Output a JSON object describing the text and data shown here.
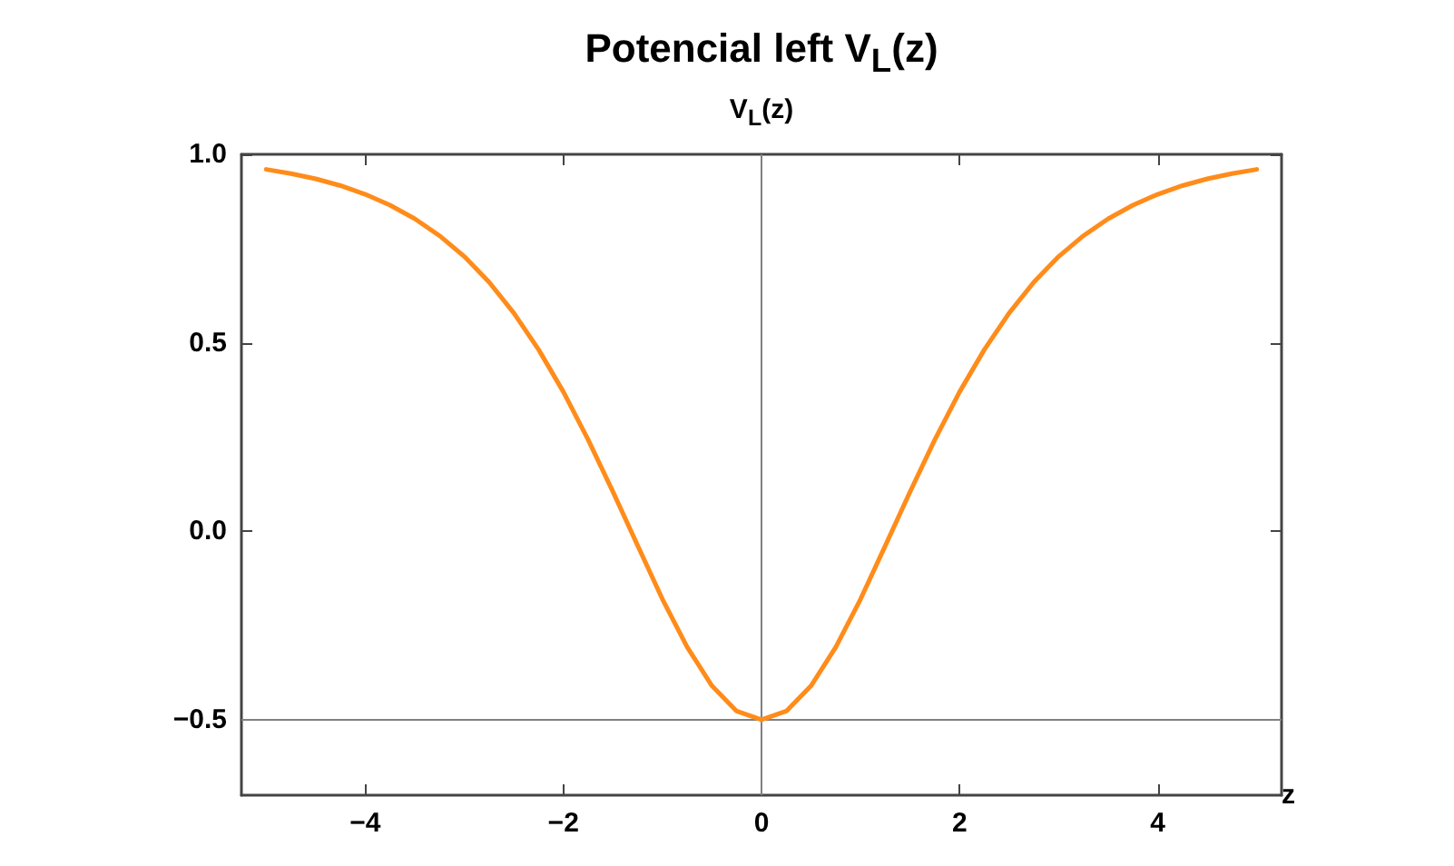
{
  "chart_data": {
    "type": "line",
    "title": "Potencial left V$_{L}$(z)",
    "ylabel": "V$_{L}$(z)",
    "xlabel": "z",
    "x": [
      -5,
      -4.75,
      -4.5,
      -4.25,
      -4,
      -3.75,
      -3.5,
      -3.25,
      -3,
      -2.75,
      -2.5,
      -2.25,
      -2,
      -1.75,
      -1.5,
      -1.25,
      -1,
      -0.75,
      -0.5,
      -0.25,
      0,
      0.25,
      0.5,
      0.75,
      1,
      1.25,
      1.5,
      1.75,
      2,
      2.25,
      2.5,
      2.75,
      3,
      3.25,
      3.5,
      3.75,
      4,
      4.25,
      4.5,
      4.75,
      5
    ],
    "series": [
      {
        "color": "#ff8c1a",
        "values": [
          0.96,
          0.949,
          0.935,
          0.917,
          0.894,
          0.865,
          0.829,
          0.784,
          0.729,
          0.661,
          0.579,
          0.482,
          0.37,
          0.243,
          0.105,
          -0.038,
          -0.18,
          -0.307,
          -0.41,
          -0.477,
          -0.5,
          -0.477,
          -0.41,
          -0.307,
          -0.18,
          -0.038,
          0.105,
          0.243,
          0.37,
          0.482,
          0.579,
          0.661,
          0.729,
          0.784,
          0.829,
          0.865,
          0.894,
          0.917,
          0.935,
          0.949,
          0.96
        ]
      }
    ],
    "xlim": [
      -5.25,
      5.25
    ],
    "ylim": [
      -0.7,
      1.0
    ],
    "xticks": [
      {
        "value": -4,
        "label": "−4"
      },
      {
        "value": -2,
        "label": "−2"
      },
      0,
      2,
      4
    ],
    "yticks": [
      {
        "value": -0.5,
        "label": "−0.5"
      },
      {
        "value": 0,
        "label": "0.0"
      },
      {
        "value": 0.5,
        "label": "0.5"
      },
      {
        "value": 1,
        "label": "1.0"
      }
    ],
    "ref_lines": [
      {
        "axis": "x",
        "value": 0,
        "color": "#808080"
      },
      {
        "axis": "y",
        "value": -0.5,
        "color": "#808080"
      }
    ],
    "marker": "none",
    "line_style": "solid"
  }
}
